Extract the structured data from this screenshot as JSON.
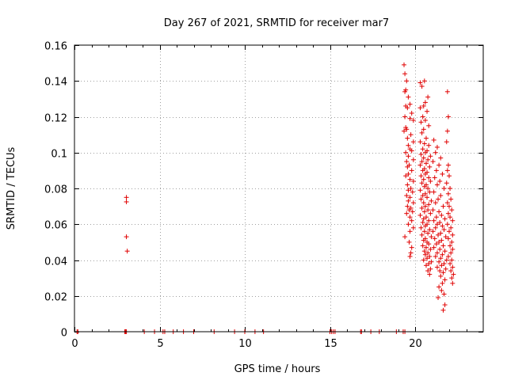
{
  "chart_data": {
    "type": "scatter",
    "title": "Day 267 of 2021, SRMTID for receiver mar7",
    "xlabel": "GPS time / hours",
    "ylabel": "SRMTID / TECUs",
    "xlim": [
      0,
      24
    ],
    "ylim": [
      0,
      0.16
    ],
    "xticks": [
      0,
      5,
      10,
      15,
      20
    ],
    "yticks": [
      0,
      0.02,
      0.04,
      0.06,
      0.08,
      0.1,
      0.12,
      0.14,
      0.16
    ],
    "ytick_labels": [
      "0",
      "0.02",
      "0.04",
      "0.06",
      "0.08",
      "0.1",
      "0.12",
      "0.14",
      "0.16"
    ],
    "grid": true,
    "marker": "+",
    "color": "#e00000",
    "series": [
      {
        "name": "SRMTID",
        "points": [
          [
            0.15,
            0
          ],
          [
            0.2,
            0
          ],
          [
            2.95,
            0
          ],
          [
            3.0,
            0
          ],
          [
            3.05,
            0
          ],
          [
            4.1,
            0
          ],
          [
            4.7,
            0
          ],
          [
            5.2,
            0
          ],
          [
            5.3,
            0
          ],
          [
            5.8,
            0
          ],
          [
            6.4,
            0
          ],
          [
            7.0,
            0
          ],
          [
            8.2,
            0
          ],
          [
            9.4,
            0
          ],
          [
            10.0,
            0
          ],
          [
            10.6,
            0
          ],
          [
            11.1,
            0
          ],
          [
            15.0,
            0
          ],
          [
            15.1,
            0
          ],
          [
            15.2,
            0
          ],
          [
            15.3,
            0
          ],
          [
            16.8,
            0
          ],
          [
            16.85,
            0
          ],
          [
            17.4,
            0
          ],
          [
            17.9,
            0
          ],
          [
            18.9,
            0
          ],
          [
            19.3,
            0
          ],
          [
            19.4,
            0
          ],
          [
            3.05,
            0.075
          ],
          [
            3.05,
            0.0725
          ],
          [
            3.05,
            0.053
          ],
          [
            3.1,
            0.045
          ],
          [
            19.35,
            0.149
          ],
          [
            19.4,
            0.144
          ],
          [
            19.5,
            0.14
          ],
          [
            19.45,
            0.135
          ],
          [
            19.4,
            0.134
          ],
          [
            19.6,
            0.131
          ],
          [
            19.7,
            0.127
          ],
          [
            19.45,
            0.126
          ],
          [
            19.55,
            0.125
          ],
          [
            19.8,
            0.122
          ],
          [
            19.4,
            0.12
          ],
          [
            19.7,
            0.119
          ],
          [
            19.9,
            0.118
          ],
          [
            19.45,
            0.114
          ],
          [
            19.35,
            0.112
          ],
          [
            19.5,
            0.113
          ],
          [
            19.75,
            0.11
          ],
          [
            19.55,
            0.108
          ],
          [
            19.9,
            0.106
          ],
          [
            19.6,
            0.104
          ],
          [
            19.7,
            0.102
          ],
          [
            19.45,
            0.1
          ],
          [
            19.8,
            0.101
          ],
          [
            19.6,
            0.098
          ],
          [
            19.9,
            0.096
          ],
          [
            19.5,
            0.095
          ],
          [
            19.65,
            0.093
          ],
          [
            19.55,
            0.092
          ],
          [
            19.8,
            0.09
          ],
          [
            19.6,
            0.088
          ],
          [
            19.45,
            0.087
          ],
          [
            19.7,
            0.085
          ],
          [
            19.9,
            0.084
          ],
          [
            19.55,
            0.082
          ],
          [
            19.75,
            0.08
          ],
          [
            19.6,
            0.079
          ],
          [
            19.85,
            0.078
          ],
          [
            19.5,
            0.076
          ],
          [
            19.7,
            0.075
          ],
          [
            19.6,
            0.073
          ],
          [
            19.9,
            0.072
          ],
          [
            19.55,
            0.07
          ],
          [
            19.75,
            0.069
          ],
          [
            19.65,
            0.068
          ],
          [
            19.85,
            0.067
          ],
          [
            19.5,
            0.066
          ],
          [
            19.7,
            0.064
          ],
          [
            19.8,
            0.062
          ],
          [
            19.6,
            0.06
          ],
          [
            19.9,
            0.058
          ],
          [
            19.7,
            0.056
          ],
          [
            19.4,
            0.053
          ],
          [
            19.65,
            0.05
          ],
          [
            19.8,
            0.047
          ],
          [
            19.75,
            0.044
          ],
          [
            19.7,
            0.042
          ],
          [
            20.3,
            0.139
          ],
          [
            20.55,
            0.14
          ],
          [
            20.4,
            0.137
          ],
          [
            20.75,
            0.131
          ],
          [
            20.6,
            0.128
          ],
          [
            20.5,
            0.126
          ],
          [
            20.3,
            0.125
          ],
          [
            20.7,
            0.123
          ],
          [
            20.45,
            0.12
          ],
          [
            20.6,
            0.118
          ],
          [
            20.35,
            0.117
          ],
          [
            20.8,
            0.115
          ],
          [
            20.5,
            0.113
          ],
          [
            20.4,
            0.111
          ],
          [
            20.65,
            0.108
          ],
          [
            20.3,
            0.106
          ],
          [
            20.55,
            0.105
          ],
          [
            20.8,
            0.104
          ],
          [
            20.45,
            0.102
          ],
          [
            20.7,
            0.101
          ],
          [
            20.6,
            0.1
          ],
          [
            20.35,
            0.099
          ],
          [
            20.9,
            0.098
          ],
          [
            20.5,
            0.097
          ],
          [
            20.75,
            0.096
          ],
          [
            20.4,
            0.095
          ],
          [
            20.65,
            0.094
          ],
          [
            20.3,
            0.093
          ],
          [
            20.85,
            0.092
          ],
          [
            20.55,
            0.091
          ],
          [
            20.45,
            0.09
          ],
          [
            20.7,
            0.089
          ],
          [
            20.6,
            0.088
          ],
          [
            20.35,
            0.087
          ],
          [
            20.8,
            0.086
          ],
          [
            20.5,
            0.085
          ],
          [
            20.9,
            0.084
          ],
          [
            20.4,
            0.083
          ],
          [
            20.65,
            0.082
          ],
          [
            20.55,
            0.081
          ],
          [
            20.75,
            0.08
          ],
          [
            20.3,
            0.079
          ],
          [
            20.85,
            0.078
          ],
          [
            20.6,
            0.077
          ],
          [
            20.45,
            0.076
          ],
          [
            20.7,
            0.075
          ],
          [
            20.35,
            0.074
          ],
          [
            20.95,
            0.073
          ],
          [
            20.5,
            0.072
          ],
          [
            20.8,
            0.071
          ],
          [
            20.6,
            0.07
          ],
          [
            20.4,
            0.069
          ],
          [
            20.75,
            0.068
          ],
          [
            20.55,
            0.067
          ],
          [
            20.9,
            0.066
          ],
          [
            20.3,
            0.065
          ],
          [
            20.65,
            0.064
          ],
          [
            20.5,
            0.063
          ],
          [
            20.8,
            0.062
          ],
          [
            20.45,
            0.061
          ],
          [
            20.7,
            0.06
          ],
          [
            20.6,
            0.059
          ],
          [
            20.35,
            0.058
          ],
          [
            20.85,
            0.057
          ],
          [
            20.55,
            0.056
          ],
          [
            20.75,
            0.055
          ],
          [
            20.4,
            0.054
          ],
          [
            20.95,
            0.053
          ],
          [
            20.6,
            0.052
          ],
          [
            20.5,
            0.051
          ],
          [
            20.7,
            0.05
          ],
          [
            20.8,
            0.049
          ],
          [
            20.45,
            0.048
          ],
          [
            20.65,
            0.047
          ],
          [
            20.9,
            0.046
          ],
          [
            20.55,
            0.045
          ],
          [
            20.75,
            0.044
          ],
          [
            20.6,
            0.043
          ],
          [
            20.85,
            0.042
          ],
          [
            20.7,
            0.041
          ],
          [
            20.5,
            0.04
          ],
          [
            20.95,
            0.039
          ],
          [
            20.8,
            0.038
          ],
          [
            20.65,
            0.037
          ],
          [
            20.9,
            0.035
          ],
          [
            20.75,
            0.034
          ],
          [
            20.85,
            0.032
          ],
          [
            21.1,
            0.107
          ],
          [
            21.3,
            0.103
          ],
          [
            21.2,
            0.1
          ],
          [
            21.5,
            0.097
          ],
          [
            21.05,
            0.095
          ],
          [
            21.4,
            0.093
          ],
          [
            21.25,
            0.09
          ],
          [
            21.6,
            0.088
          ],
          [
            21.15,
            0.086
          ],
          [
            21.45,
            0.084
          ],
          [
            21.3,
            0.082
          ],
          [
            21.7,
            0.08
          ],
          [
            21.1,
            0.078
          ],
          [
            21.5,
            0.076
          ],
          [
            21.35,
            0.074
          ],
          [
            21.2,
            0.072
          ],
          [
            21.65,
            0.07
          ],
          [
            21.05,
            0.068
          ],
          [
            21.4,
            0.067
          ],
          [
            21.55,
            0.065
          ],
          [
            21.25,
            0.064
          ],
          [
            21.75,
            0.063
          ],
          [
            21.1,
            0.062
          ],
          [
            21.45,
            0.061
          ],
          [
            21.3,
            0.06
          ],
          [
            21.6,
            0.059
          ],
          [
            21.2,
            0.058
          ],
          [
            21.7,
            0.057
          ],
          [
            21.05,
            0.056
          ],
          [
            21.5,
            0.055
          ],
          [
            21.35,
            0.054
          ],
          [
            21.8,
            0.053
          ],
          [
            21.15,
            0.052
          ],
          [
            21.55,
            0.051
          ],
          [
            21.4,
            0.05
          ],
          [
            21.25,
            0.049
          ],
          [
            21.65,
            0.048
          ],
          [
            21.1,
            0.047
          ],
          [
            21.45,
            0.046
          ],
          [
            21.75,
            0.045
          ],
          [
            21.3,
            0.044
          ],
          [
            21.6,
            0.043
          ],
          [
            21.2,
            0.042
          ],
          [
            21.5,
            0.041
          ],
          [
            21.85,
            0.04
          ],
          [
            21.4,
            0.039
          ],
          [
            21.7,
            0.038
          ],
          [
            21.55,
            0.037
          ],
          [
            21.3,
            0.036
          ],
          [
            21.8,
            0.035
          ],
          [
            21.45,
            0.034
          ],
          [
            21.65,
            0.033
          ],
          [
            21.5,
            0.031
          ],
          [
            21.75,
            0.029
          ],
          [
            21.6,
            0.027
          ],
          [
            21.4,
            0.025
          ],
          [
            21.55,
            0.023
          ],
          [
            21.7,
            0.021
          ],
          [
            21.35,
            0.019
          ],
          [
            21.75,
            0.015
          ],
          [
            21.65,
            0.012
          ],
          [
            21.9,
            0.134
          ],
          [
            21.95,
            0.12
          ],
          [
            21.9,
            0.112
          ],
          [
            21.85,
            0.106
          ],
          [
            21.95,
            0.093
          ],
          [
            21.9,
            0.09
          ],
          [
            22.0,
            0.087
          ],
          [
            21.85,
            0.083
          ],
          [
            22.05,
            0.08
          ],
          [
            21.95,
            0.077
          ],
          [
            22.1,
            0.074
          ],
          [
            21.9,
            0.072
          ],
          [
            22.0,
            0.07
          ],
          [
            22.15,
            0.068
          ],
          [
            21.95,
            0.066
          ],
          [
            22.05,
            0.064
          ],
          [
            22.2,
            0.062
          ],
          [
            21.9,
            0.06
          ],
          [
            22.1,
            0.058
          ],
          [
            22.0,
            0.056
          ],
          [
            22.2,
            0.054
          ],
          [
            21.95,
            0.052
          ],
          [
            22.15,
            0.05
          ],
          [
            22.05,
            0.048
          ],
          [
            22.2,
            0.046
          ],
          [
            22.1,
            0.044
          ],
          [
            21.95,
            0.042
          ],
          [
            22.15,
            0.04
          ],
          [
            22.05,
            0.038
          ],
          [
            22.2,
            0.036
          ],
          [
            22.1,
            0.034
          ],
          [
            22.25,
            0.032
          ],
          [
            22.15,
            0.03
          ],
          [
            22.2,
            0.027
          ]
        ]
      }
    ]
  }
}
